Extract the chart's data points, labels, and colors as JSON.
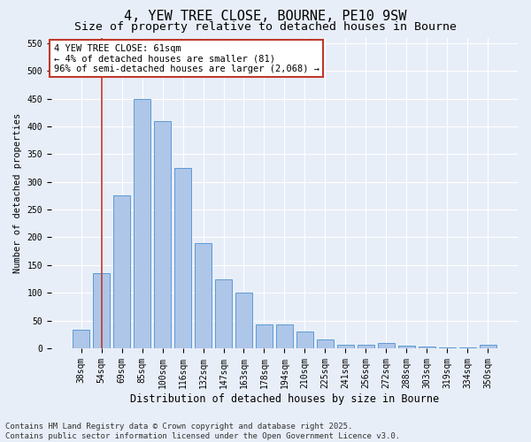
{
  "title": "4, YEW TREE CLOSE, BOURNE, PE10 9SW",
  "subtitle": "Size of property relative to detached houses in Bourne",
  "xlabel": "Distribution of detached houses by size in Bourne",
  "ylabel": "Number of detached properties",
  "categories": [
    "38sqm",
    "54sqm",
    "69sqm",
    "85sqm",
    "100sqm",
    "116sqm",
    "132sqm",
    "147sqm",
    "163sqm",
    "178sqm",
    "194sqm",
    "210sqm",
    "225sqm",
    "241sqm",
    "256sqm",
    "272sqm",
    "288sqm",
    "303sqm",
    "319sqm",
    "334sqm",
    "350sqm"
  ],
  "values": [
    33,
    135,
    275,
    450,
    410,
    325,
    190,
    125,
    100,
    43,
    43,
    30,
    16,
    7,
    7,
    9,
    4,
    3,
    1,
    1,
    6
  ],
  "bar_color": "#aec6e8",
  "bar_edge_color": "#5b9bd5",
  "vline_x": 1,
  "vline_color": "#c0392b",
  "annotation_text": "4 YEW TREE CLOSE: 61sqm\n← 4% of detached houses are smaller (81)\n96% of semi-detached houses are larger (2,068) →",
  "annotation_box_color": "#c0392b",
  "ylim": [
    0,
    560
  ],
  "yticks": [
    0,
    50,
    100,
    150,
    200,
    250,
    300,
    350,
    400,
    450,
    500,
    550
  ],
  "bg_color": "#e8eef8",
  "grid_color": "#ffffff",
  "footer": "Contains HM Land Registry data © Crown copyright and database right 2025.\nContains public sector information licensed under the Open Government Licence v3.0.",
  "title_fontsize": 11,
  "subtitle_fontsize": 9.5,
  "xlabel_fontsize": 8.5,
  "ylabel_fontsize": 7.5,
  "tick_fontsize": 7,
  "annotation_fontsize": 7.5,
  "footer_fontsize": 6.5
}
